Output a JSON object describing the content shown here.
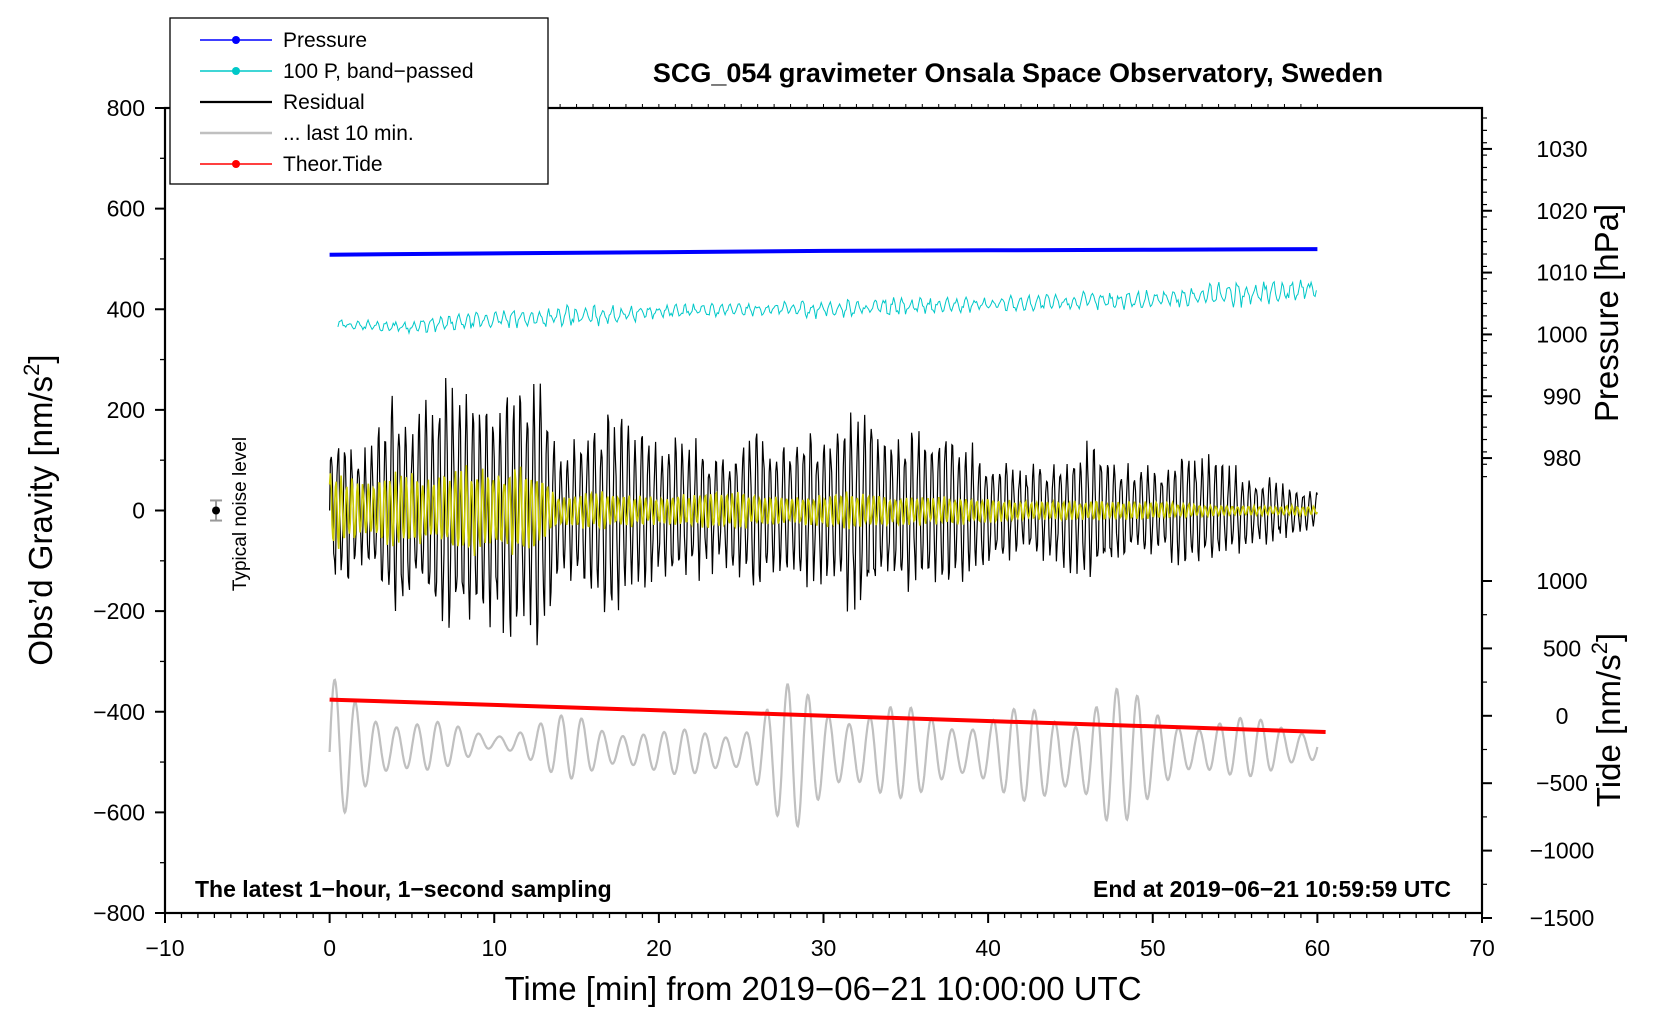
{
  "chart_data": {
    "type": "line",
    "title": "SCG_054 gravimeter Onsala Space Observatory, Sweden",
    "xlabel": "Time [min] from 2019−06−21 10:00:00 UTC",
    "ylabel_left": "Obs’d Gravity [nm/s",
    "ylabel_left_sup": "2",
    "ylabel_left_close": "]",
    "ylabel_right_pressure": "Pressure [hPa]",
    "ylabel_right_tide": "Tide [nm/s",
    "ylabel_right_tide_sup": "2",
    "ylabel_right_tide_close": "]",
    "xlim": [
      -10,
      70
    ],
    "ylim_gravity": [
      -800,
      800
    ],
    "ylim_pressure": [
      975,
      1035
    ],
    "ylim_tide": [
      -1500,
      1500
    ],
    "x_ticks": [
      -10,
      0,
      10,
      20,
      30,
      40,
      50,
      60,
      70
    ],
    "x_tick_labels": [
      "−10",
      "0",
      "10",
      "20",
      "30",
      "40",
      "50",
      "60",
      "70"
    ],
    "y_ticks_gravity": [
      -800,
      -600,
      -400,
      -200,
      0,
      200,
      400,
      600,
      800
    ],
    "y_tick_labels_gravity": [
      "−800",
      "−600",
      "−400",
      "−200",
      "0",
      "200",
      "400",
      "600",
      "800"
    ],
    "y_ticks_pressure": [
      980,
      990,
      1000,
      1010,
      1020,
      1030
    ],
    "y_tick_labels_pressure": [
      "980",
      "990",
      "1000",
      "1010",
      "1020",
      "1030"
    ],
    "y_ticks_tide": [
      -1500,
      -1000,
      -500,
      0,
      500,
      1000
    ],
    "y_tick_labels_tide": [
      "−1500",
      "−1000",
      "−500",
      "0",
      "500",
      "1000"
    ],
    "note_left": "The latest 1−hour, 1−second sampling",
    "note_right": "End at 2019−06−21 10:59:59 UTC",
    "noise_label": "Typical noise level",
    "noise_marker": {
      "x": -6.9,
      "y": 0,
      "err": 20
    },
    "legend": [
      {
        "label": "Pressure",
        "color": "#0000ff",
        "marker": true
      },
      {
        "label": "100 P, band−passed",
        "color": "#00c8c8",
        "marker": true
      },
      {
        "label": "Residual",
        "color": "#000000",
        "marker": false
      },
      {
        "label": "... last 10 min.",
        "color": "#c0c0c0",
        "marker": false
      },
      {
        "label": "Theor.Tide",
        "color": "#ff0000",
        "marker": true
      }
    ],
    "series": [
      {
        "name": "Pressure",
        "axis": "pressure",
        "color": "#0000ff",
        "x": [
          0,
          10,
          20,
          30,
          40,
          50,
          60
        ],
        "y": [
          1012.9,
          1013.1,
          1013.3,
          1013.5,
          1013.6,
          1013.7,
          1013.8
        ]
      },
      {
        "name": "100 P, band−passed",
        "axis": "gravity",
        "color": "#00c8c8",
        "x": [
          0,
          5,
          10,
          15,
          20,
          25,
          30,
          35,
          40,
          45,
          50,
          55,
          60
        ],
        "mean": [
          370,
          365,
          380,
          385,
          395,
          400,
          400,
          405,
          410,
          415,
          420,
          430,
          440
        ],
        "amp": [
          10,
          15,
          20,
          25,
          15,
          15,
          20,
          20,
          15,
          20,
          20,
          30,
          20
        ]
      },
      {
        "name": "Residual",
        "axis": "gravity",
        "color": "#000000",
        "x": [
          0,
          2,
          4,
          5,
          7,
          9,
          11,
          13,
          14,
          16,
          18,
          20,
          22,
          24,
          26,
          28,
          30,
          32,
          34,
          36,
          38,
          40,
          42,
          44,
          46,
          48,
          50,
          52,
          54,
          56,
          58,
          60
        ],
        "amp": [
          180,
          120,
          250,
          180,
          320,
          200,
          300,
          280,
          120,
          200,
          220,
          150,
          150,
          120,
          180,
          140,
          170,
          230,
          150,
          180,
          160,
          120,
          90,
          110,
          150,
          110,
          90,
          120,
          110,
          80,
          60,
          40
        ]
      },
      {
        "name": "Yellow filtered residual",
        "axis": "gravity",
        "color": "#c8c800",
        "x": [
          0,
          2,
          4,
          6,
          8,
          10,
          12,
          14,
          16,
          20,
          24,
          28,
          32,
          34,
          38,
          42,
          46,
          50,
          54,
          58,
          60
        ],
        "amp": [
          90,
          60,
          80,
          70,
          100,
          80,
          100,
          30,
          40,
          30,
          40,
          30,
          40,
          30,
          30,
          20,
          20,
          20,
          10,
          10,
          10
        ]
      },
      {
        "name": "... last 10 min.",
        "axis": "gravity",
        "color": "#c0c0c0",
        "x": [
          0,
          5,
          10,
          15,
          20,
          25,
          28,
          30,
          35,
          40,
          45,
          47,
          50,
          55,
          60
        ],
        "mean": [
          -480,
          -470,
          -460,
          -470,
          -480,
          -480,
          -490,
          -480,
          -480,
          -480,
          -490,
          -490,
          -480,
          -470,
          -470
        ],
        "amp": [
          150,
          60,
          20,
          70,
          40,
          60,
          150,
          120,
          90,
          80,
          110,
          170,
          90,
          60,
          50
        ]
      },
      {
        "name": "Theor.Tide",
        "axis": "tide",
        "color": "#ff0000",
        "x": [
          0,
          60.5
        ],
        "y": [
          120,
          -120
        ]
      }
    ]
  }
}
